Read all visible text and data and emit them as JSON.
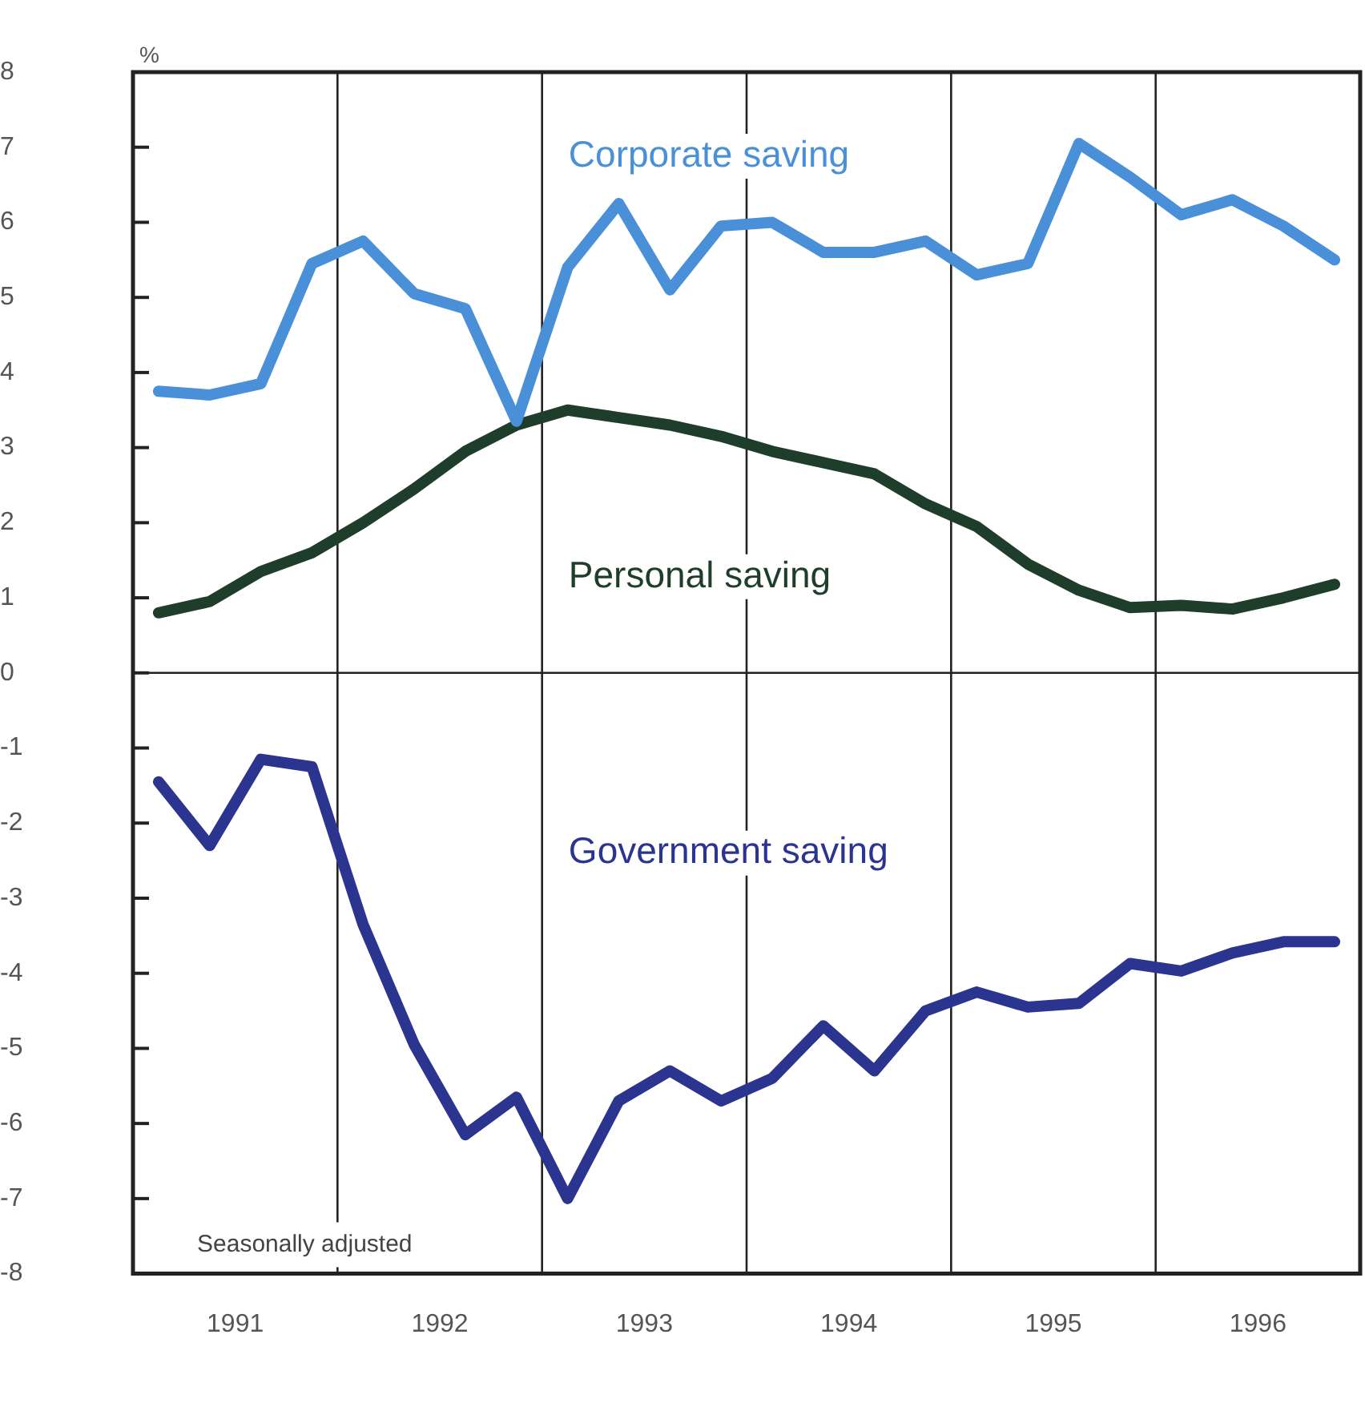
{
  "chart_data": {
    "type": "line",
    "ylabel": "%",
    "legend": false,
    "grid": false,
    "marker": "none",
    "line_style": "solid",
    "x": [
      1991.125,
      1991.375,
      1991.625,
      1991.875,
      1992.125,
      1992.375,
      1992.625,
      1992.875,
      1993.125,
      1993.375,
      1993.625,
      1993.875,
      1994.125,
      1994.375,
      1994.625,
      1994.875,
      1995.125,
      1995.375,
      1995.625,
      1995.875,
      1996.125,
      1996.375,
      1996.625,
      1996.875
    ],
    "xlim": [
      1991,
      1997
    ],
    "xticks": [
      {
        "value": 1991.5,
        "label": "1991"
      },
      {
        "value": 1992.5,
        "label": "1992"
      },
      {
        "value": 1993.5,
        "label": "1993"
      },
      {
        "value": 1994.5,
        "label": "1994"
      },
      {
        "value": 1995.5,
        "label": "1995"
      },
      {
        "value": 1996.5,
        "label": "1996"
      }
    ],
    "ylim": [
      -8,
      8
    ],
    "yticks": [
      -8,
      -7,
      -6,
      -5,
      -4,
      -3,
      -2,
      -1,
      0,
      1,
      2,
      3,
      4,
      5,
      6,
      7,
      8
    ],
    "series": [
      {
        "name": "Corporate saving",
        "color": "#4a90d9",
        "values": [
          3.75,
          3.7,
          3.85,
          5.45,
          5.75,
          5.05,
          4.85,
          3.35,
          5.4,
          6.25,
          5.1,
          5.95,
          6.0,
          5.6,
          5.6,
          5.75,
          5.3,
          5.45,
          7.05,
          6.6,
          6.1,
          6.3,
          5.95,
          5.5
        ]
      },
      {
        "name": "Personal saving",
        "color": "#1e3d2a",
        "values": [
          0.8,
          0.95,
          1.35,
          1.6,
          2.0,
          2.45,
          2.95,
          3.3,
          3.5,
          3.4,
          3.3,
          3.15,
          2.95,
          2.8,
          2.65,
          2.25,
          1.95,
          1.45,
          1.1,
          0.87,
          0.9,
          0.85,
          1.0,
          1.18
        ]
      },
      {
        "name": "Government saving",
        "color": "#2b3590",
        "values": [
          -1.45,
          -2.3,
          -1.15,
          -1.25,
          -3.35,
          -4.95,
          -6.15,
          -5.65,
          -7.0,
          -5.7,
          -5.3,
          -5.7,
          -5.4,
          -4.7,
          -5.3,
          -4.5,
          -4.25,
          -4.45,
          -4.4,
          -3.87,
          -3.97,
          -3.73,
          -3.58,
          -3.58
        ]
      }
    ],
    "ref_lines": [
      {
        "axis": "x",
        "value": 1992
      },
      {
        "axis": "x",
        "value": 1993
      },
      {
        "axis": "x",
        "value": 1994
      },
      {
        "axis": "x",
        "value": 1995
      },
      {
        "axis": "x",
        "value": 1996
      },
      {
        "axis": "y",
        "value": 0
      }
    ],
    "annotations": [
      "Seasonally adjusted"
    ]
  }
}
